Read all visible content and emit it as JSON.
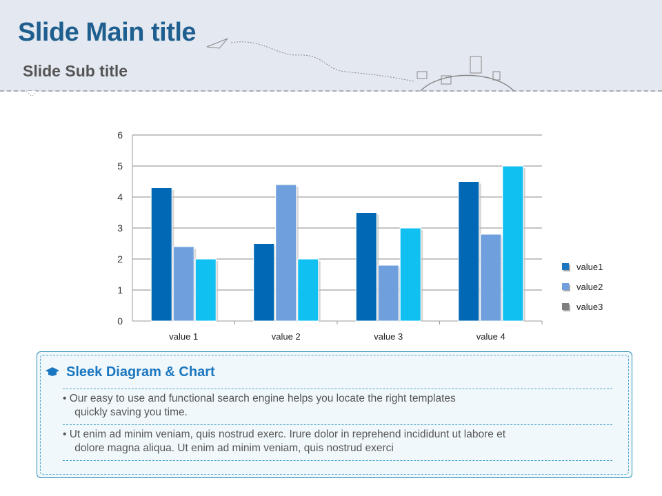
{
  "header": {
    "title": "Slide Main title",
    "subtitle": "Slide Sub title"
  },
  "chart_data": {
    "type": "bar",
    "categories": [
      "value 1",
      "value 2",
      "value 3",
      "value 4"
    ],
    "series": [
      {
        "name": "value1",
        "values": [
          4.3,
          2.5,
          3.5,
          4.5
        ],
        "color": "#0068b5"
      },
      {
        "name": "value2",
        "values": [
          2.4,
          4.4,
          1.8,
          2.8
        ],
        "color": "#6f9fdc"
      },
      {
        "name": "value3",
        "values": [
          2,
          2,
          3,
          5
        ],
        "color": "#10c0f0"
      }
    ],
    "legend_colors": [
      "#1a77c0",
      "#6f9fdc",
      "#808080"
    ],
    "ylim": [
      0,
      6
    ],
    "yticks": [
      0,
      1,
      2,
      3,
      4,
      5,
      6
    ],
    "grid": true,
    "legend": "right"
  },
  "info": {
    "title": "Sleek Diagram & Chart",
    "bullets": [
      "• Our easy to use and functional search engine helps you locate the right templates\n    quickly saving you time.",
      "• Ut enim ad minim veniam, quis nostrud exerc. Irure dolor in reprehend incididunt ut labore et\n    dolore magna aliqua. Ut enim ad minim veniam, quis nostrud exerci"
    ]
  }
}
